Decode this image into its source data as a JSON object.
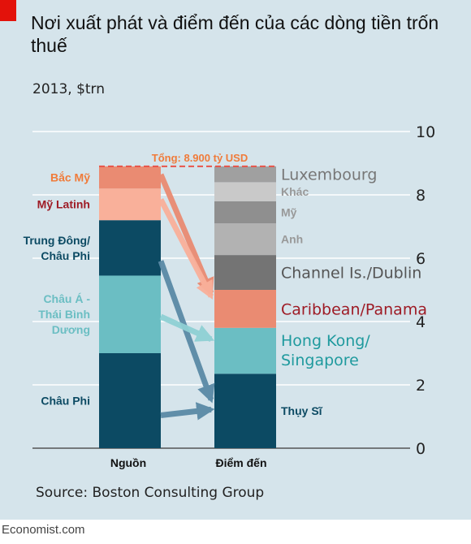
{
  "title": "Nơi xuất phát và điểm đến của các dòng tiền trốn thuế",
  "subtitle": "2013, $trn",
  "source": "Source: Boston Consulting Group",
  "footer": "Economist.com",
  "colors": {
    "background": "#d5e4eb",
    "accent_red": "#e3120b",
    "total_line": "#e8544a",
    "total_text": "#f07b3a"
  },
  "chart_data": {
    "type": "bar",
    "title": "Nơi xuất phát và điểm đến của các dòng tiền trốn thuế",
    "subtitle": "2013, $trn",
    "categories": [
      "Nguồn",
      "Điểm đến"
    ],
    "ylim": [
      0,
      10
    ],
    "y_ticks": [
      0,
      2,
      4,
      6,
      8,
      10
    ],
    "grid": true,
    "total_label": "Tổng: 8.900 tỷ USD",
    "total": 8.9,
    "sources": [
      {
        "name": "Châu Phi",
        "value": 3.0,
        "color": "#0c4a63",
        "label_color": "#0c4a63"
      },
      {
        "name": "Châu Á - Thái Bình Dương",
        "value": 2.45,
        "color": "#6bbec3",
        "label_color": "#6bbec3"
      },
      {
        "name": "Trung Đông/ Châu Phi",
        "value": 1.75,
        "color": "#0c4a63",
        "label_color": "#0c4a63"
      },
      {
        "name": "Mỹ Latinh",
        "value": 1.0,
        "color": "#f9b09a",
        "label_color": "#9e1b25"
      },
      {
        "name": "Bắc Mỹ",
        "value": 0.7,
        "color": "#ea8b72",
        "label_color": "#f07b3a"
      }
    ],
    "destinations": [
      {
        "name": "Thụy Sĩ",
        "value": 2.35,
        "color": "#0c4a63",
        "label_color": "#0c4a63"
      },
      {
        "name": "Hong Kong/ Singapore",
        "value": 1.45,
        "color": "#6bbec3",
        "label_color": "#1f9a9e"
      },
      {
        "name": "Caribbean/Panama",
        "value": 1.2,
        "color": "#ea8b72",
        "label_color": "#9e1b25"
      },
      {
        "name": "Channel Is./Dublin",
        "value": 1.1,
        "color": "#747474",
        "label_color": "#555555"
      },
      {
        "name": "Anh",
        "value": 1.0,
        "color": "#b2b2b2",
        "label_color": "#999999"
      },
      {
        "name": "Mỹ",
        "value": 0.7,
        "color": "#8f8f8f",
        "label_color": "#999999"
      },
      {
        "name": "Khác",
        "value": 0.6,
        "color": "#c9c9c9",
        "label_color": "#999999"
      },
      {
        "name": "Luxembourg",
        "value": 0.5,
        "color": "#a0a0a0",
        "label_color": "#777777"
      }
    ],
    "flows": [
      {
        "from": "Bắc Mỹ",
        "to": "Caribbean/Panama",
        "color": "#ea8b72"
      },
      {
        "from": "Mỹ Latinh",
        "to": "Caribbean/Panama",
        "color": "#f9b09a"
      },
      {
        "from": "Trung Đông/ Châu Phi",
        "to": "Thụy Sĩ",
        "color": "#5a8aa6"
      },
      {
        "from": "Châu Á - Thái Bình Dương",
        "to": "Hong Kong/ Singapore",
        "color": "#8fd0d4"
      },
      {
        "from": "Châu Phi",
        "to": "Thụy Sĩ",
        "color": "#5a8aa6"
      }
    ]
  }
}
